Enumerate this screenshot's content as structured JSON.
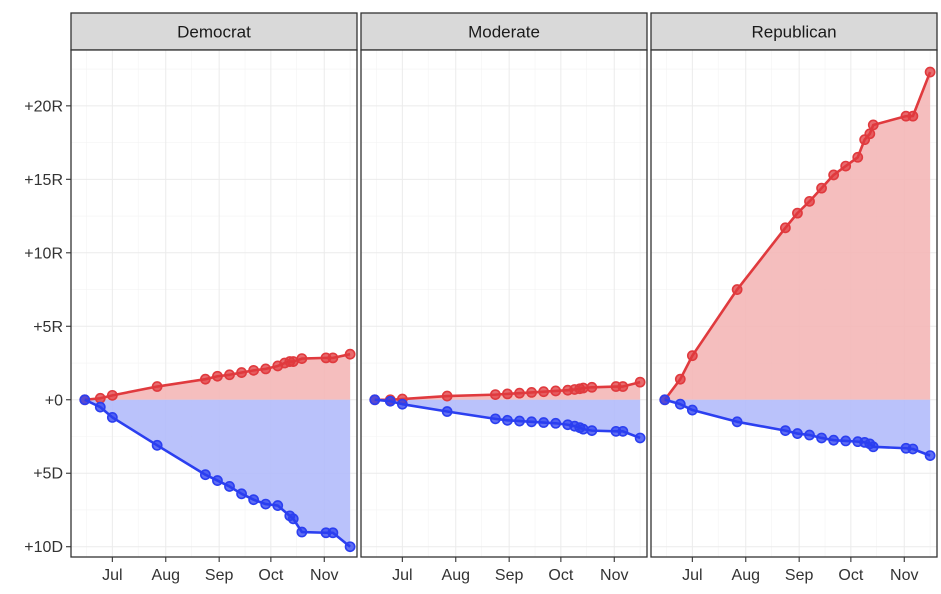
{
  "chart_data": {
    "type": "area",
    "facet_labels": [
      "Democrat",
      "Moderate",
      "Republican"
    ],
    "x_tick_labels": [
      "Jul",
      "Aug",
      "Sep",
      "Oct",
      "Nov"
    ],
    "y_tick_labels": [
      "+10D",
      "+5D",
      "+0",
      "+5R",
      "+10R",
      "+15R",
      "+20R"
    ],
    "y_tick_values": [
      -10,
      -5,
      0,
      5,
      10,
      15,
      20
    ],
    "xlim": [
      "2024-06-07",
      "2024-11-20"
    ],
    "ylim": [
      -10.7,
      23.8
    ],
    "colors": {
      "red_line": "#e03a3e",
      "red_fill": "#f4b7b7",
      "blue_line": "#2b3ff0",
      "blue_fill": "#b3bbfb",
      "strip_bg": "#d9d9d9",
      "grid": "#ebebeb",
      "panel_border": "#333333"
    },
    "panels": [
      {
        "facet": "Democrat",
        "series": [
          {
            "color": "red",
            "points": [
              [
                "2024-06-15",
                0
              ],
              [
                "2024-06-24",
                0.1
              ],
              [
                "2024-07-01",
                0.3
              ],
              [
                "2024-07-27",
                0.9
              ],
              [
                "2024-08-24",
                1.4
              ],
              [
                "2024-08-31",
                1.6
              ],
              [
                "2024-09-07",
                1.7
              ],
              [
                "2024-09-14",
                1.85
              ],
              [
                "2024-09-21",
                2.0
              ],
              [
                "2024-09-28",
                2.1
              ],
              [
                "2024-10-05",
                2.3
              ],
              [
                "2024-10-09",
                2.5
              ],
              [
                "2024-10-12",
                2.6
              ],
              [
                "2024-10-14",
                2.6
              ],
              [
                "2024-10-19",
                2.8
              ],
              [
                "2024-11-02",
                2.85
              ],
              [
                "2024-11-06",
                2.85
              ],
              [
                "2024-11-16",
                3.1
              ]
            ]
          },
          {
            "color": "blue",
            "points": [
              [
                "2024-06-15",
                0
              ],
              [
                "2024-06-24",
                -0.5
              ],
              [
                "2024-07-01",
                -1.2
              ],
              [
                "2024-07-27",
                -3.1
              ],
              [
                "2024-08-24",
                -5.1
              ],
              [
                "2024-08-31",
                -5.5
              ],
              [
                "2024-09-07",
                -5.9
              ],
              [
                "2024-09-14",
                -6.4
              ],
              [
                "2024-09-21",
                -6.8
              ],
              [
                "2024-09-28",
                -7.1
              ],
              [
                "2024-10-05",
                -7.2
              ],
              [
                "2024-10-12",
                -7.9
              ],
              [
                "2024-10-14",
                -8.1
              ],
              [
                "2024-10-19",
                -9.0
              ],
              [
                "2024-11-02",
                -9.05
              ],
              [
                "2024-11-06",
                -9.05
              ],
              [
                "2024-11-16",
                -10.0
              ]
            ]
          }
        ]
      },
      {
        "facet": "Moderate",
        "series": [
          {
            "color": "red",
            "points": [
              [
                "2024-06-15",
                0
              ],
              [
                "2024-06-24",
                0.0
              ],
              [
                "2024-07-01",
                0.05
              ],
              [
                "2024-07-27",
                0.25
              ],
              [
                "2024-08-24",
                0.35
              ],
              [
                "2024-08-31",
                0.4
              ],
              [
                "2024-09-07",
                0.45
              ],
              [
                "2024-09-14",
                0.5
              ],
              [
                "2024-09-21",
                0.55
              ],
              [
                "2024-09-28",
                0.6
              ],
              [
                "2024-10-05",
                0.65
              ],
              [
                "2024-10-09",
                0.7
              ],
              [
                "2024-10-12",
                0.75
              ],
              [
                "2024-10-14",
                0.8
              ],
              [
                "2024-10-19",
                0.85
              ],
              [
                "2024-11-02",
                0.9
              ],
              [
                "2024-11-06",
                0.9
              ],
              [
                "2024-11-16",
                1.2
              ]
            ]
          },
          {
            "color": "blue",
            "points": [
              [
                "2024-06-15",
                0
              ],
              [
                "2024-06-24",
                -0.1
              ],
              [
                "2024-07-01",
                -0.3
              ],
              [
                "2024-07-27",
                -0.8
              ],
              [
                "2024-08-24",
                -1.3
              ],
              [
                "2024-08-31",
                -1.4
              ],
              [
                "2024-09-07",
                -1.45
              ],
              [
                "2024-09-14",
                -1.5
              ],
              [
                "2024-09-21",
                -1.55
              ],
              [
                "2024-09-28",
                -1.6
              ],
              [
                "2024-10-05",
                -1.7
              ],
              [
                "2024-10-09",
                -1.8
              ],
              [
                "2024-10-12",
                -1.9
              ],
              [
                "2024-10-14",
                -2.0
              ],
              [
                "2024-10-19",
                -2.1
              ],
              [
                "2024-11-02",
                -2.15
              ],
              [
                "2024-11-06",
                -2.15
              ],
              [
                "2024-11-16",
                -2.6
              ]
            ]
          }
        ]
      },
      {
        "facet": "Republican",
        "series": [
          {
            "color": "red",
            "points": [
              [
                "2024-06-15",
                0
              ],
              [
                "2024-06-24",
                1.4
              ],
              [
                "2024-07-01",
                3.0
              ],
              [
                "2024-07-27",
                7.5
              ],
              [
                "2024-08-24",
                11.7
              ],
              [
                "2024-08-31",
                12.7
              ],
              [
                "2024-09-07",
                13.5
              ],
              [
                "2024-09-14",
                14.4
              ],
              [
                "2024-09-21",
                15.3
              ],
              [
                "2024-09-28",
                15.9
              ],
              [
                "2024-10-05",
                16.5
              ],
              [
                "2024-10-09",
                17.7
              ],
              [
                "2024-10-12",
                18.1
              ],
              [
                "2024-10-14",
                18.7
              ],
              [
                "2024-11-02",
                19.3
              ],
              [
                "2024-11-06",
                19.3
              ],
              [
                "2024-11-16",
                22.3
              ]
            ]
          },
          {
            "color": "blue",
            "points": [
              [
                "2024-06-15",
                0
              ],
              [
                "2024-06-24",
                -0.3
              ],
              [
                "2024-07-01",
                -0.7
              ],
              [
                "2024-07-27",
                -1.5
              ],
              [
                "2024-08-24",
                -2.1
              ],
              [
                "2024-08-31",
                -2.3
              ],
              [
                "2024-09-07",
                -2.4
              ],
              [
                "2024-09-14",
                -2.6
              ],
              [
                "2024-09-21",
                -2.75
              ],
              [
                "2024-09-28",
                -2.8
              ],
              [
                "2024-10-05",
                -2.85
              ],
              [
                "2024-10-09",
                -2.9
              ],
              [
                "2024-10-12",
                -3.0
              ],
              [
                "2024-10-14",
                -3.2
              ],
              [
                "2024-11-02",
                -3.3
              ],
              [
                "2024-11-06",
                -3.35
              ],
              [
                "2024-11-16",
                -3.8
              ]
            ]
          }
        ]
      }
    ],
    "grid": true,
    "legend": "none"
  }
}
